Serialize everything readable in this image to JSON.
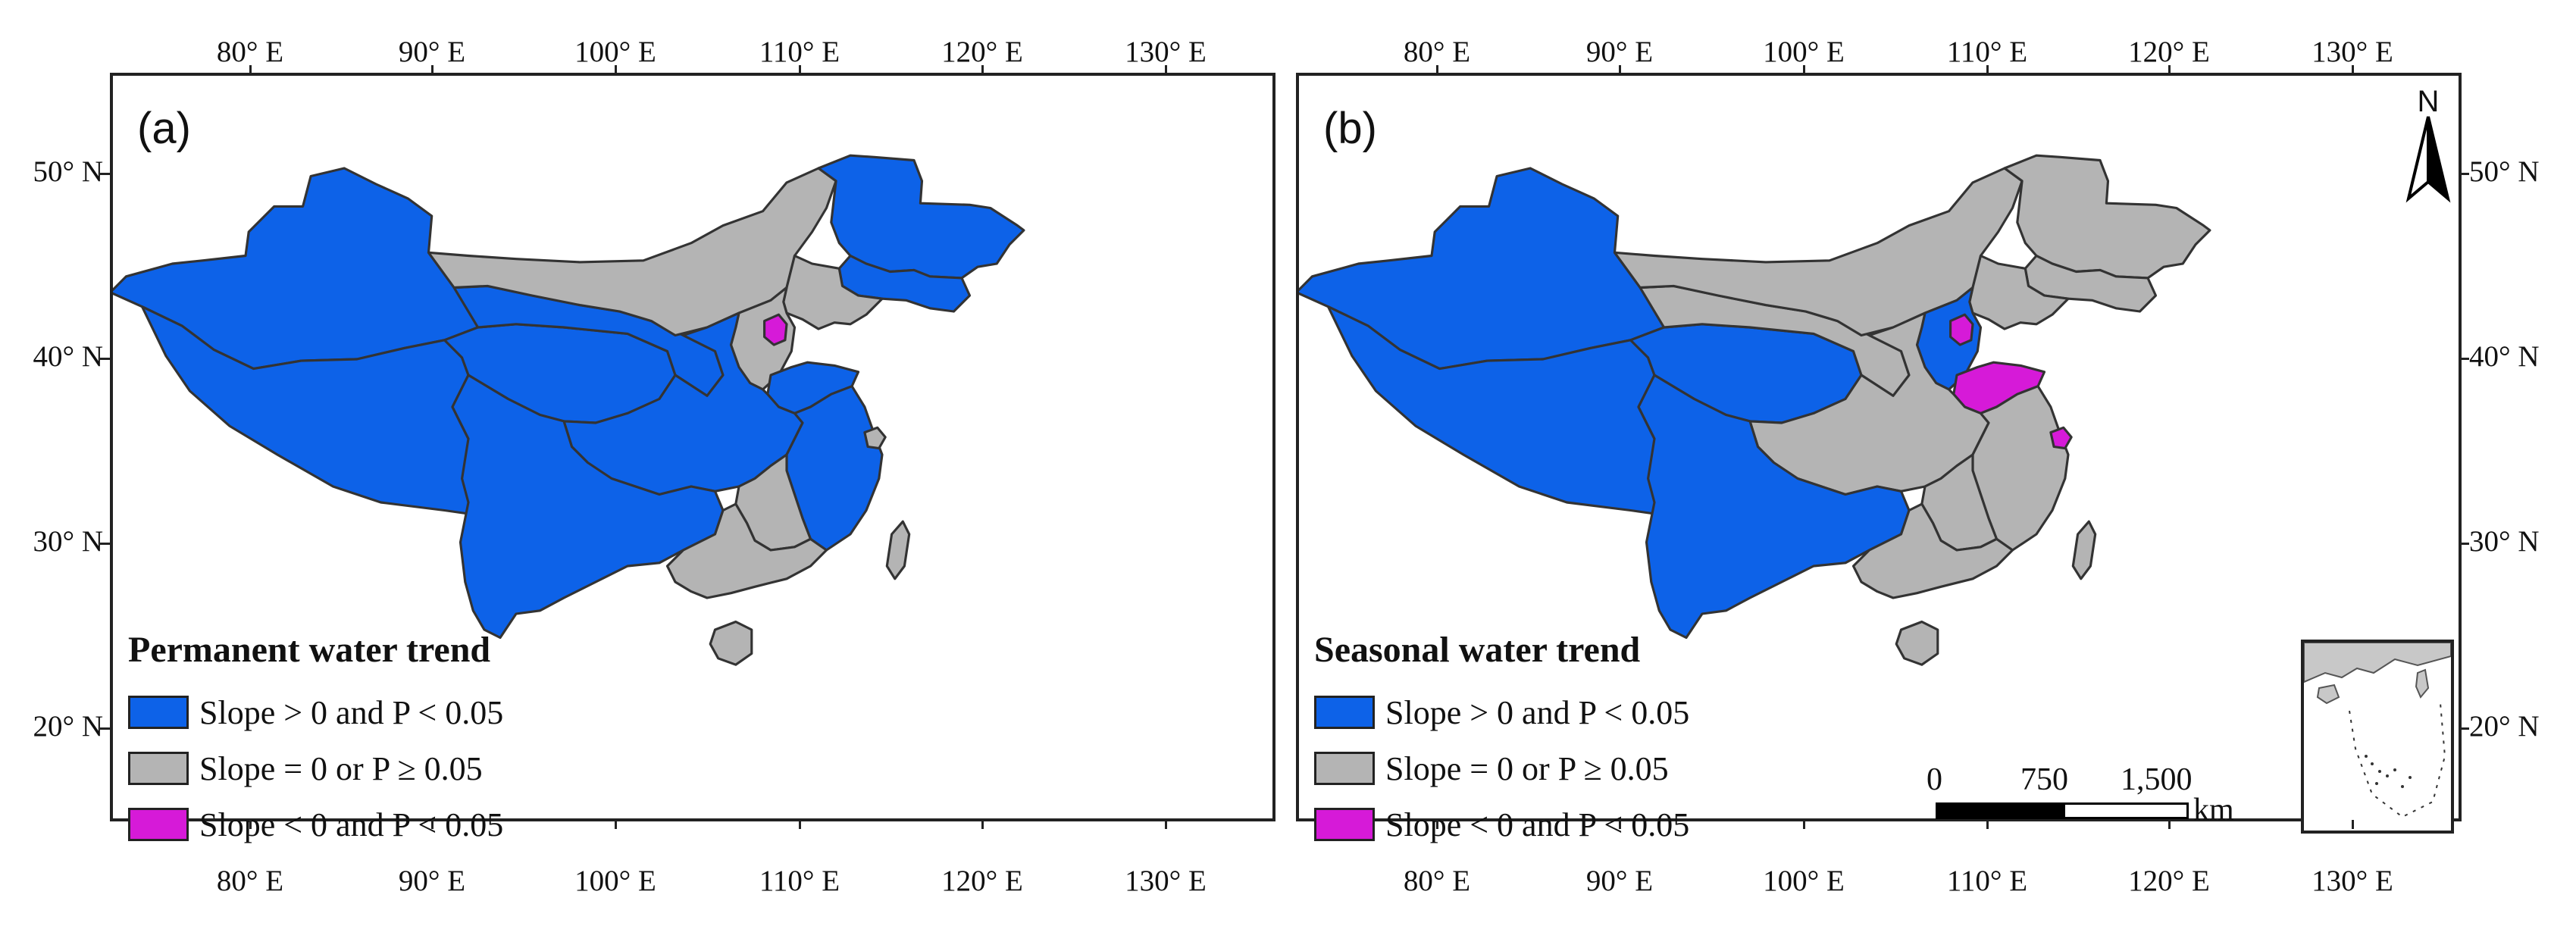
{
  "colors": {
    "increase": "#0d62e8",
    "no_trend": "#b4b4b4",
    "decrease": "#d61ad8",
    "border": "#333333"
  },
  "axes": {
    "longitude_ticks": [
      "80° E",
      "90° E",
      "100° E",
      "110° E",
      "120° E",
      "130° E"
    ],
    "latitude_ticks": [
      "50° N",
      "40° N",
      "30° N",
      "20° N"
    ]
  },
  "legend_items": [
    {
      "label": "Slope > 0 and P < 0.05",
      "color": "#0d62e8"
    },
    {
      "label": "Slope = 0 or P ≥ 0.05",
      "color": "#b4b4b4"
    },
    {
      "label": "Slope < 0 and P < 0.05",
      "color": "#d61ad8"
    }
  ],
  "panels": [
    {
      "label": "(a)",
      "legend_title": "Permanent water trend",
      "regions": {
        "xinjiang": "increase",
        "tibet": "increase",
        "qinghai": "increase",
        "gansu": "increase",
        "inner_mongolia": "no_trend",
        "heilongjiang": "increase",
        "jilin": "increase",
        "liaoning": "no_trend",
        "beijing_tianjin": "decrease",
        "hebei_north": "no_trend",
        "shandong": "increase",
        "central_china": "increase",
        "southwest_china": "increase",
        "east_coast": "increase",
        "jiangxi": "no_trend",
        "guangdong": "no_trend",
        "hainan": "no_trend",
        "taiwan": "no_trend",
        "shanghai": "no_trend"
      }
    },
    {
      "label": "(b)",
      "legend_title": "Seasonal water trend",
      "regions": {
        "xinjiang": "increase",
        "tibet": "increase",
        "qinghai": "increase",
        "gansu": "no_trend",
        "inner_mongolia": "no_trend",
        "heilongjiang": "no_trend",
        "jilin": "no_trend",
        "liaoning": "no_trend",
        "beijing_tianjin": "decrease",
        "hebei_north": "increase",
        "shandong": "decrease",
        "central_china": "no_trend",
        "southwest_china": "increase",
        "east_coast": "no_trend",
        "jiangxi": "no_trend",
        "guangdong": "no_trend",
        "hainan": "no_trend",
        "taiwan": "no_trend",
        "shanghai": "decrease"
      }
    }
  ],
  "scale_bar": {
    "labels": [
      "0",
      "750",
      "1,500"
    ],
    "unit": "km"
  },
  "north_arrow": {
    "letter": "N"
  }
}
